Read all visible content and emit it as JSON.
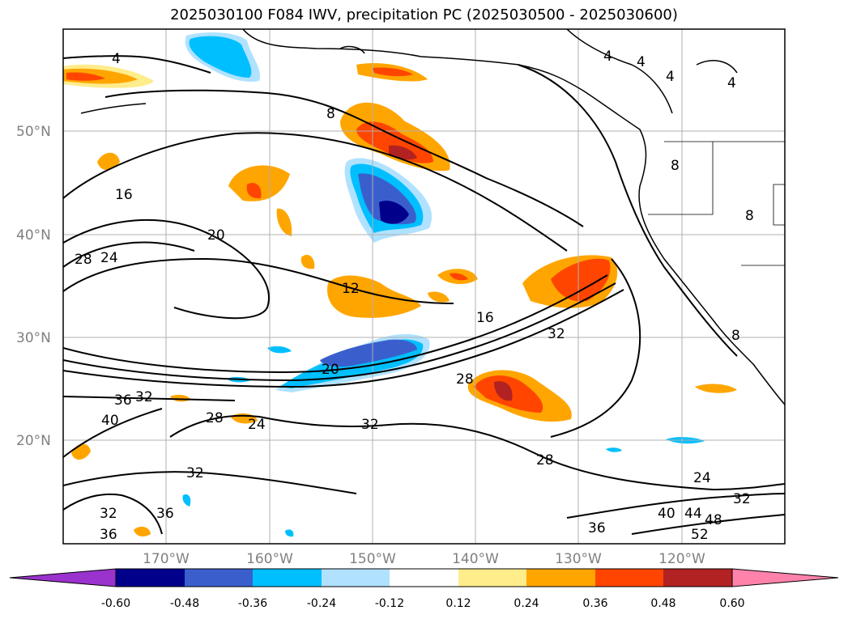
{
  "title": "2025030100 F084 IWV, precipitation PC (2025030500 - 2025030600)",
  "lat_labels": [
    "50°N",
    "40°N",
    "30°N",
    "20°N"
  ],
  "lon_labels": [
    "170°W",
    "160°W",
    "150°W",
    "140°W",
    "130°W",
    "120°W"
  ],
  "contour_labels": [
    "4",
    "4",
    "4",
    "4",
    "4",
    "8",
    "8",
    "8",
    "8",
    "12",
    "16",
    "16",
    "20",
    "20",
    "24",
    "24",
    "24",
    "28",
    "28",
    "28",
    "28",
    "32",
    "32",
    "32",
    "32",
    "32",
    "32",
    "36",
    "36",
    "36",
    "36",
    "40",
    "40",
    "44",
    "48",
    "52"
  ],
  "colorbar": {
    "ticks": [
      "-0.60",
      "-0.48",
      "-0.36",
      "-0.24",
      "-0.12",
      "0.12",
      "0.24",
      "0.36",
      "0.48",
      "0.60"
    ],
    "colors": [
      "#9a32cd",
      "#00008b",
      "#3a5fcd",
      "#00bfff",
      "#b0e2ff",
      "#ffffff",
      "#ffec8b",
      "#ffa500",
      "#ff4500",
      "#b22222",
      "#ff82ab"
    ]
  }
}
